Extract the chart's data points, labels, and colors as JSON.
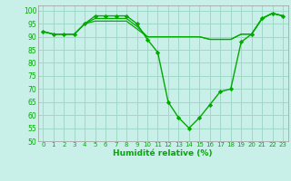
{
  "title": "",
  "xlabel": "Humidité relative (%)",
  "ylabel": "",
  "bg_color": "#c8f0e8",
  "grid_color": "#a0d8c8",
  "line_color": "#00aa00",
  "marker_color": "#00aa00",
  "xlim": [
    -0.5,
    23.5
  ],
  "ylim": [
    50,
    102
  ],
  "yticks": [
    50,
    55,
    60,
    65,
    70,
    75,
    80,
    85,
    90,
    95,
    100
  ],
  "xticks": [
    0,
    1,
    2,
    3,
    4,
    5,
    6,
    7,
    8,
    9,
    10,
    11,
    12,
    13,
    14,
    15,
    16,
    17,
    18,
    19,
    20,
    21,
    22,
    23
  ],
  "series": [
    {
      "x": [
        0,
        1,
        2,
        3,
        4,
        5,
        6,
        7,
        8,
        9,
        10,
        11,
        12,
        13,
        14,
        15,
        16,
        17,
        18,
        19,
        20,
        21,
        22,
        23
      ],
      "y": [
        92,
        91,
        91,
        91,
        95,
        98,
        98,
        98,
        98,
        95,
        89,
        84,
        65,
        59,
        55,
        59,
        64,
        69,
        70,
        88,
        91,
        97,
        99,
        98
      ],
      "with_markers": true
    },
    {
      "x": [
        0,
        1,
        2,
        3,
        4,
        5,
        6,
        7,
        8,
        9,
        10,
        11,
        12,
        13,
        14,
        15,
        16,
        17,
        18,
        19,
        20,
        21,
        22,
        23
      ],
      "y": [
        92,
        91,
        91,
        91,
        95,
        97,
        97,
        97,
        97,
        94,
        90,
        90,
        90,
        90,
        90,
        90,
        89,
        89,
        89,
        91,
        91,
        97,
        99,
        98
      ],
      "with_markers": false
    },
    {
      "x": [
        0,
        1,
        2,
        3,
        4,
        5,
        6,
        7,
        8,
        9,
        10,
        11,
        12,
        13,
        14,
        15,
        16,
        17,
        18,
        19,
        20,
        21,
        22,
        23
      ],
      "y": [
        92,
        91,
        91,
        91,
        95,
        96,
        96,
        96,
        96,
        93,
        90,
        90,
        90,
        90,
        90,
        90,
        89,
        89,
        89,
        91,
        91,
        97,
        99,
        98
      ],
      "with_markers": false
    }
  ]
}
